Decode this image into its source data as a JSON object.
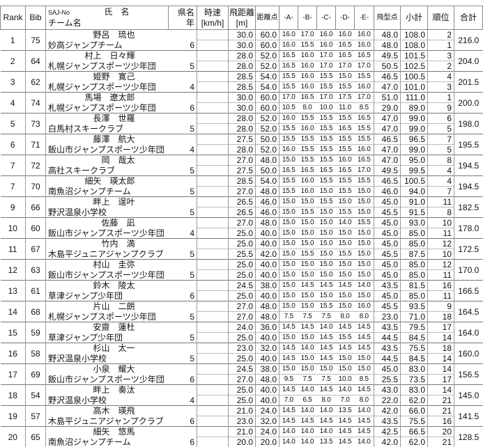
{
  "header": {
    "rank": "Rank",
    "bib": "Bib",
    "saj_no": "SAJ-No",
    "name": "氏　名",
    "team": "チーム名",
    "pref": "県名",
    "grade": "年",
    "speed": "時速",
    "speed_unit": "[km/h]",
    "distance": "飛距離",
    "distance_unit": "[m]",
    "distance_points": "距離点",
    "judges": [
      "-A-",
      "-B-",
      "-C-",
      "-D-",
      "-E-"
    ],
    "style_points": "飛型点",
    "subtotal": "小計",
    "place": "順位",
    "total": "合計"
  },
  "athletes": [
    {
      "rank": "1",
      "bib": "75",
      "name": "野呂　琉也",
      "team": "妙高ジャンプチーム",
      "grade": "6",
      "total": "216.0",
      "jumps": [
        {
          "dist": "30.0",
          "dpts": "60.0",
          "judges": [
            "16.0",
            "17.0",
            "16.0",
            "16.0",
            "16.0"
          ],
          "style": "48.0",
          "sub": "108.0",
          "place": "2"
        },
        {
          "dist": "30.0",
          "dpts": "60.0",
          "judges": [
            "16.0",
            "15.5",
            "16.0",
            "16.5",
            "16.0"
          ],
          "style": "48.0",
          "sub": "108.0",
          "place": "1"
        }
      ]
    },
    {
      "rank": "2",
      "bib": "64",
      "name": "村上　日々輝",
      "team": "札幌ジャンプスポーツ少年団",
      "grade": "5",
      "total": "204.0",
      "jumps": [
        {
          "dist": "28.0",
          "dpts": "52.0",
          "judges": [
            "16.5",
            "16.0",
            "17.0",
            "16.5",
            "16.5"
          ],
          "style": "49.5",
          "sub": "101.5",
          "place": "3"
        },
        {
          "dist": "28.0",
          "dpts": "52.0",
          "judges": [
            "16.5",
            "16.0",
            "17.0",
            "17.0",
            "17.0"
          ],
          "style": "50.5",
          "sub": "102.5",
          "place": "2"
        }
      ]
    },
    {
      "rank": "3",
      "bib": "62",
      "name": "姫野　寛己",
      "team": "札幌ジャンプスポーツ少年団",
      "grade": "4",
      "total": "201.5",
      "jumps": [
        {
          "dist": "28.5",
          "dpts": "54.0",
          "judges": [
            "15.5",
            "16.0",
            "15.5",
            "15.0",
            "15.5"
          ],
          "style": "46.5",
          "sub": "100.5",
          "place": "4"
        },
        {
          "dist": "28.5",
          "dpts": "54.0",
          "judges": [
            "15.5",
            "16.0",
            "15.5",
            "15.5",
            "16.0"
          ],
          "style": "47.0",
          "sub": "101.0",
          "place": "3"
        }
      ]
    },
    {
      "rank": "4",
      "bib": "74",
      "name": "馬場　遼太郎",
      "team": "札幌ジャンプスポーツ少年団",
      "grade": "6",
      "total": "200.0",
      "jumps": [
        {
          "dist": "30.0",
          "dpts": "60.0",
          "judges": [
            "17.0",
            "16.5",
            "17.0",
            "17.5",
            "17.0"
          ],
          "style": "51.0",
          "sub": "111.0",
          "place": "1"
        },
        {
          "dist": "30.0",
          "dpts": "60.0",
          "judges": [
            "10.5",
            "8.0",
            "10.0",
            "11.0",
            "8.5"
          ],
          "style": "29.0",
          "sub": "89.0",
          "place": "9"
        }
      ]
    },
    {
      "rank": "5",
      "bib": "73",
      "name": "長澤　世羅",
      "team": "白馬村スキークラブ",
      "grade": "5",
      "total": "198.0",
      "jumps": [
        {
          "dist": "28.0",
          "dpts": "52.0",
          "judges": [
            "16.0",
            "15.5",
            "15.5",
            "15.5",
            "16.5"
          ],
          "style": "47.0",
          "sub": "99.0",
          "place": "6"
        },
        {
          "dist": "28.0",
          "dpts": "52.0",
          "judges": [
            "15.5",
            "16.0",
            "15.5",
            "16.5",
            "15.5"
          ],
          "style": "47.0",
          "sub": "99.0",
          "place": "5"
        }
      ]
    },
    {
      "rank": "6",
      "bib": "71",
      "name": "藤澤　航大",
      "team": "飯山市ジャンプスポーツ少年団",
      "grade": "4",
      "total": "195.5",
      "jumps": [
        {
          "dist": "27.5",
          "dpts": "50.0",
          "judges": [
            "15.5",
            "15.5",
            "15.5",
            "15.5",
            "15.5"
          ],
          "style": "46.5",
          "sub": "96.5",
          "place": "7"
        },
        {
          "dist": "28.0",
          "dpts": "52.0",
          "judges": [
            "16.0",
            "15.5",
            "15.5",
            "15.5",
            "16.0"
          ],
          "style": "47.0",
          "sub": "99.0",
          "place": "5"
        }
      ]
    },
    {
      "rank": "7",
      "bib": "72",
      "name": "岡　哉太",
      "team": "高社スキークラブ",
      "grade": "5",
      "total": "194.5",
      "jumps": [
        {
          "dist": "27.0",
          "dpts": "48.0",
          "judges": [
            "15.0",
            "15.5",
            "15.5",
            "16.0",
            "16.5"
          ],
          "style": "47.0",
          "sub": "95.0",
          "place": "8"
        },
        {
          "dist": "27.5",
          "dpts": "50.0",
          "judges": [
            "16.5",
            "16.5",
            "16.5",
            "16.5",
            "17.0"
          ],
          "style": "49.5",
          "sub": "99.5",
          "place": "4"
        }
      ]
    },
    {
      "rank": "7",
      "bib": "70",
      "name": "細矢　瑛太郎",
      "team": "南魚沼ジャンプチーム",
      "grade": "5",
      "total": "194.5",
      "jumps": [
        {
          "dist": "28.5",
          "dpts": "54.0",
          "judges": [
            "15.5",
            "16.0",
            "15.5",
            "15.5",
            "15.5"
          ],
          "style": "46.5",
          "sub": "100.5",
          "place": "4"
        },
        {
          "dist": "27.0",
          "dpts": "48.0",
          "judges": [
            "15.5",
            "16.0",
            "15.0",
            "15.5",
            "15.0"
          ],
          "style": "46.0",
          "sub": "94.0",
          "place": "7"
        }
      ]
    },
    {
      "rank": "9",
      "bib": "66",
      "name": "畔上　逞叶",
      "team": "野沢温泉小学校",
      "grade": "5",
      "total": "182.5",
      "jumps": [
        {
          "dist": "26.5",
          "dpts": "46.0",
          "judges": [
            "15.0",
            "15.0",
            "15.5",
            "15.0",
            "15.0"
          ],
          "style": "45.0",
          "sub": "91.0",
          "place": "11"
        },
        {
          "dist": "26.5",
          "dpts": "46.0",
          "judges": [
            "15.0",
            "15.5",
            "15.0",
            "15.5",
            "15.0"
          ],
          "style": "45.5",
          "sub": "91.5",
          "place": "8"
        }
      ]
    },
    {
      "rank": "10",
      "bib": "60",
      "name": "佐藤　凪",
      "team": "飯山市ジャンプスポーツ少年団",
      "grade": "4",
      "total": "178.0",
      "jumps": [
        {
          "dist": "27.0",
          "dpts": "48.0",
          "judges": [
            "15.0",
            "15.0",
            "15.0",
            "14.0",
            "15.5"
          ],
          "style": "45.0",
          "sub": "93.0",
          "place": "10"
        },
        {
          "dist": "25.0",
          "dpts": "40.0",
          "judges": [
            "15.0",
            "15.0",
            "15.0",
            "15.0",
            "15.0"
          ],
          "style": "45.0",
          "sub": "85.0",
          "place": "11"
        }
      ]
    },
    {
      "rank": "11",
      "bib": "67",
      "name": "竹内　満",
      "team": "木島平ジュニアジャンプクラブ",
      "grade": "5",
      "total": "172.5",
      "jumps": [
        {
          "dist": "25.0",
          "dpts": "40.0",
          "judges": [
            "15.0",
            "15.0",
            "15.0",
            "15.0",
            "15.0"
          ],
          "style": "45.0",
          "sub": "85.0",
          "place": "12"
        },
        {
          "dist": "25.5",
          "dpts": "42.0",
          "judges": [
            "15.0",
            "15.5",
            "15.0",
            "15.5",
            "15.0"
          ],
          "style": "45.5",
          "sub": "87.5",
          "place": "10"
        }
      ]
    },
    {
      "rank": "12",
      "bib": "63",
      "name": "村山　圭弥",
      "team": "飯山市ジャンプスポーツ少年団",
      "grade": "5",
      "total": "170.0",
      "jumps": [
        {
          "dist": "25.0",
          "dpts": "40.0",
          "judges": [
            "15.0",
            "15.0",
            "15.0",
            "15.0",
            "15.0"
          ],
          "style": "45.0",
          "sub": "85.0",
          "place": "12"
        },
        {
          "dist": "25.0",
          "dpts": "40.0",
          "judges": [
            "15.0",
            "15.0",
            "15.0",
            "15.0",
            "15.0"
          ],
          "style": "45.0",
          "sub": "85.0",
          "place": "11"
        }
      ]
    },
    {
      "rank": "13",
      "bib": "61",
      "name": "鈴木　陵太",
      "team": "草津ジャンプ少年団",
      "grade": "6",
      "total": "166.5",
      "jumps": [
        {
          "dist": "24.5",
          "dpts": "38.0",
          "judges": [
            "15.0",
            "14.5",
            "14.5",
            "14.5",
            "14.0"
          ],
          "style": "43.5",
          "sub": "81.5",
          "place": "16"
        },
        {
          "dist": "25.0",
          "dpts": "40.0",
          "judges": [
            "15.0",
            "15.0",
            "15.0",
            "15.0",
            "15.0"
          ],
          "style": "45.0",
          "sub": "85.0",
          "place": "11"
        }
      ]
    },
    {
      "rank": "14",
      "bib": "68",
      "name": "片山　二朗",
      "team": "札幌ジャンプスポーツ少年団",
      "grade": "5",
      "total": "164.5",
      "jumps": [
        {
          "dist": "27.0",
          "dpts": "48.0",
          "judges": [
            "15.0",
            "15.0",
            "15.5",
            "15.0",
            "16.0"
          ],
          "style": "45.5",
          "sub": "93.5",
          "place": "9"
        },
        {
          "dist": "27.0",
          "dpts": "48.0",
          "judges": [
            "7.5",
            "7.5",
            "7.5",
            "8.0",
            "8.0"
          ],
          "style": "23.0",
          "sub": "71.0",
          "place": "18"
        }
      ]
    },
    {
      "rank": "15",
      "bib": "59",
      "name": "安齋　蓮杜",
      "team": "草津ジャンプ少年団",
      "grade": "5",
      "total": "164.0",
      "jumps": [
        {
          "dist": "24.0",
          "dpts": "36.0",
          "judges": [
            "14.5",
            "14.5",
            "14.0",
            "14.5",
            "14.5"
          ],
          "style": "43.5",
          "sub": "79.5",
          "place": "17"
        },
        {
          "dist": "25.0",
          "dpts": "40.0",
          "judges": [
            "15.0",
            "15.0",
            "14.5",
            "15.5",
            "14.5"
          ],
          "style": "44.5",
          "sub": "84.5",
          "place": "14"
        }
      ]
    },
    {
      "rank": "16",
      "bib": "58",
      "name": "杉山　太一",
      "team": "野沢温泉小学校",
      "grade": "5",
      "total": "160.0",
      "jumps": [
        {
          "dist": "23.0",
          "dpts": "32.0",
          "judges": [
            "14.5",
            "14.0",
            "14.5",
            "14.5",
            "14.5"
          ],
          "style": "43.5",
          "sub": "75.5",
          "place": "18"
        },
        {
          "dist": "25.0",
          "dpts": "40.0",
          "judges": [
            "14.5",
            "15.0",
            "14.5",
            "15.0",
            "15.0"
          ],
          "style": "44.5",
          "sub": "84.5",
          "place": "14"
        }
      ]
    },
    {
      "rank": "17",
      "bib": "69",
      "name": "小泉　耀大",
      "team": "飯山市ジャンプスポーツ少年団",
      "grade": "6",
      "total": "156.5",
      "jumps": [
        {
          "dist": "24.5",
          "dpts": "38.0",
          "judges": [
            "15.0",
            "15.0",
            "15.0",
            "15.0",
            "15.0"
          ],
          "style": "45.0",
          "sub": "83.0",
          "place": "14"
        },
        {
          "dist": "27.0",
          "dpts": "48.0",
          "judges": [
            "9.5",
            "7.5",
            "7.5",
            "10.0",
            "8.5"
          ],
          "style": "25.5",
          "sub": "73.5",
          "place": "17"
        }
      ]
    },
    {
      "rank": "18",
      "bib": "54",
      "name": "畔上　奏汰",
      "team": "野沢温泉小学校",
      "grade": "4",
      "total": "145.0",
      "jumps": [
        {
          "dist": "25.0",
          "dpts": "40.0",
          "judges": [
            "14.5",
            "14.0",
            "14.5",
            "14.0",
            "14.5"
          ],
          "style": "43.0",
          "sub": "83.0",
          "place": "14"
        },
        {
          "dist": "25.0",
          "dpts": "40.0",
          "judges": [
            "7.0",
            "6.5",
            "8.0",
            "7.0",
            "8.0"
          ],
          "style": "22.0",
          "sub": "62.0",
          "place": "21"
        }
      ]
    },
    {
      "rank": "19",
      "bib": "57",
      "name": "高木　瑛飛",
      "team": "木島平ジュニアジャンプクラブ",
      "grade": "6",
      "total": "141.5",
      "jumps": [
        {
          "dist": "21.0",
          "dpts": "24.0",
          "judges": [
            "14.5",
            "14.0",
            "14.0",
            "13.5",
            "14.0"
          ],
          "style": "42.0",
          "sub": "66.0",
          "place": "21"
        },
        {
          "dist": "23.0",
          "dpts": "32.0",
          "judges": [
            "14.5",
            "14.5",
            "14.5",
            "14.5",
            "14.5"
          ],
          "style": "43.5",
          "sub": "75.5",
          "place": "16"
        }
      ]
    },
    {
      "rank": "20",
      "bib": "65",
      "name": "細矢　悠馬",
      "team": "南魚沼ジャンプチーム",
      "grade": "6",
      "total": "128.5",
      "jumps": [
        {
          "dist": "21.0",
          "dpts": "24.0",
          "judges": [
            "14.0",
            "14.0",
            "14.0",
            "14.5",
            "14.5"
          ],
          "style": "42.5",
          "sub": "66.5",
          "place": "20"
        },
        {
          "dist": "20.0",
          "dpts": "20.0",
          "judges": [
            "14.0",
            "14.0",
            "13.5",
            "14.5",
            "14.0"
          ],
          "style": "42.0",
          "sub": "62.0",
          "place": "21"
        }
      ]
    }
  ]
}
